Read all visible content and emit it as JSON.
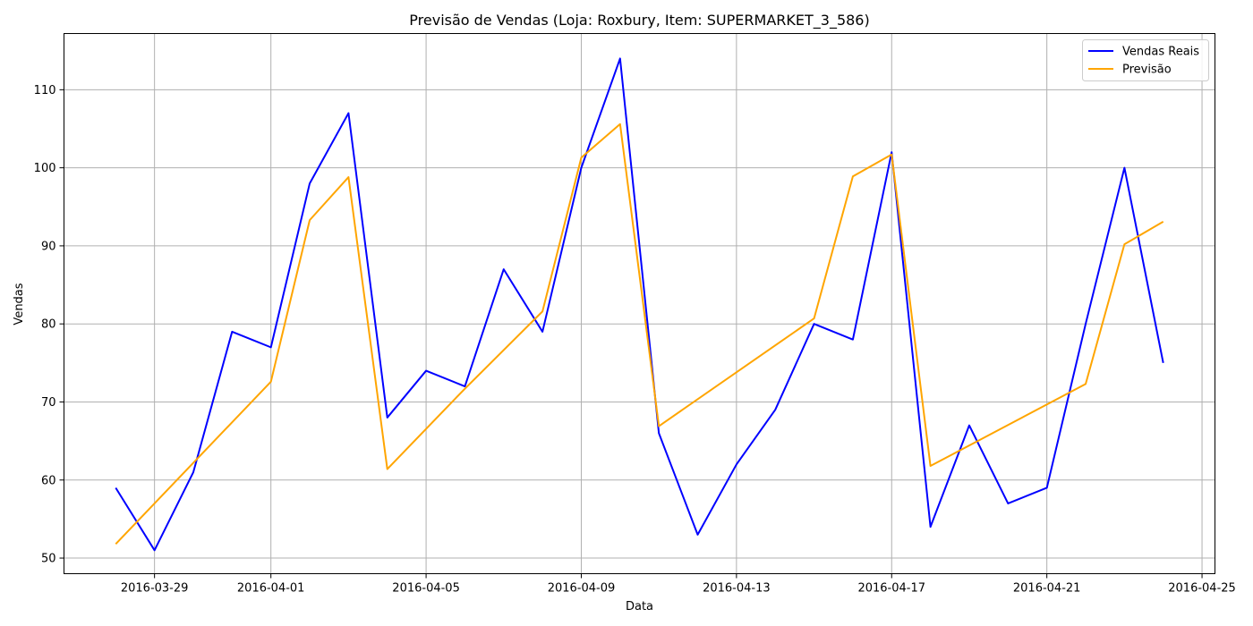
{
  "chart_data": {
    "type": "line",
    "title": "Previsão de Vendas (Loja: Roxbury, Item: SUPERMARKET_3_586)",
    "xlabel": "Data",
    "ylabel": "Vendas",
    "xlim": [
      "2016-03-26T16:00",
      "2016-04-25T08:00"
    ],
    "ylim": [
      48,
      117.2
    ],
    "grid": true,
    "legend_position": "top-right",
    "x_ticks": [
      "2016-03-29",
      "2016-04-01",
      "2016-04-05",
      "2016-04-09",
      "2016-04-13",
      "2016-04-17",
      "2016-04-21",
      "2016-04-25"
    ],
    "y_ticks": [
      50,
      60,
      70,
      80,
      90,
      100,
      110
    ],
    "series": [
      {
        "name": "Vendas Reais",
        "color": "#0000ff",
        "x": [
          "2016-03-28",
          "2016-03-29",
          "2016-03-30",
          "2016-03-31",
          "2016-04-01",
          "2016-04-02",
          "2016-04-03",
          "2016-04-04",
          "2016-04-05",
          "2016-04-06",
          "2016-04-07",
          "2016-04-08",
          "2016-04-09",
          "2016-04-10",
          "2016-04-11",
          "2016-04-12",
          "2016-04-13",
          "2016-04-14",
          "2016-04-15",
          "2016-04-16",
          "2016-04-17",
          "2016-04-18",
          "2016-04-19",
          "2016-04-20",
          "2016-04-21",
          "2016-04-22",
          "2016-04-23",
          "2016-04-24"
        ],
        "values": [
          59,
          51,
          61,
          79,
          77,
          98,
          107,
          68,
          74,
          72,
          87,
          79,
          100,
          114,
          66,
          53,
          62,
          69,
          80,
          78,
          102,
          54,
          67,
          57,
          59,
          80,
          100,
          75
        ]
      },
      {
        "name": "Previsão",
        "color": "#ffa500",
        "x": [
          "2016-03-28",
          "2016-04-01",
          "2016-04-02",
          "2016-04-03",
          "2016-04-04",
          "2016-04-06",
          "2016-04-08",
          "2016-04-09",
          "2016-04-10",
          "2016-04-11",
          "2016-04-15",
          "2016-04-16",
          "2016-04-17",
          "2016-04-18",
          "2016-04-22",
          "2016-04-23",
          "2016-04-24"
        ],
        "values": [
          51.8,
          72.6,
          93.3,
          98.8,
          61.4,
          71.7,
          81.6,
          101.3,
          105.6,
          66.9,
          80.7,
          98.9,
          101.7,
          61.8,
          72.3,
          90.2,
          93.1
        ]
      }
    ]
  }
}
